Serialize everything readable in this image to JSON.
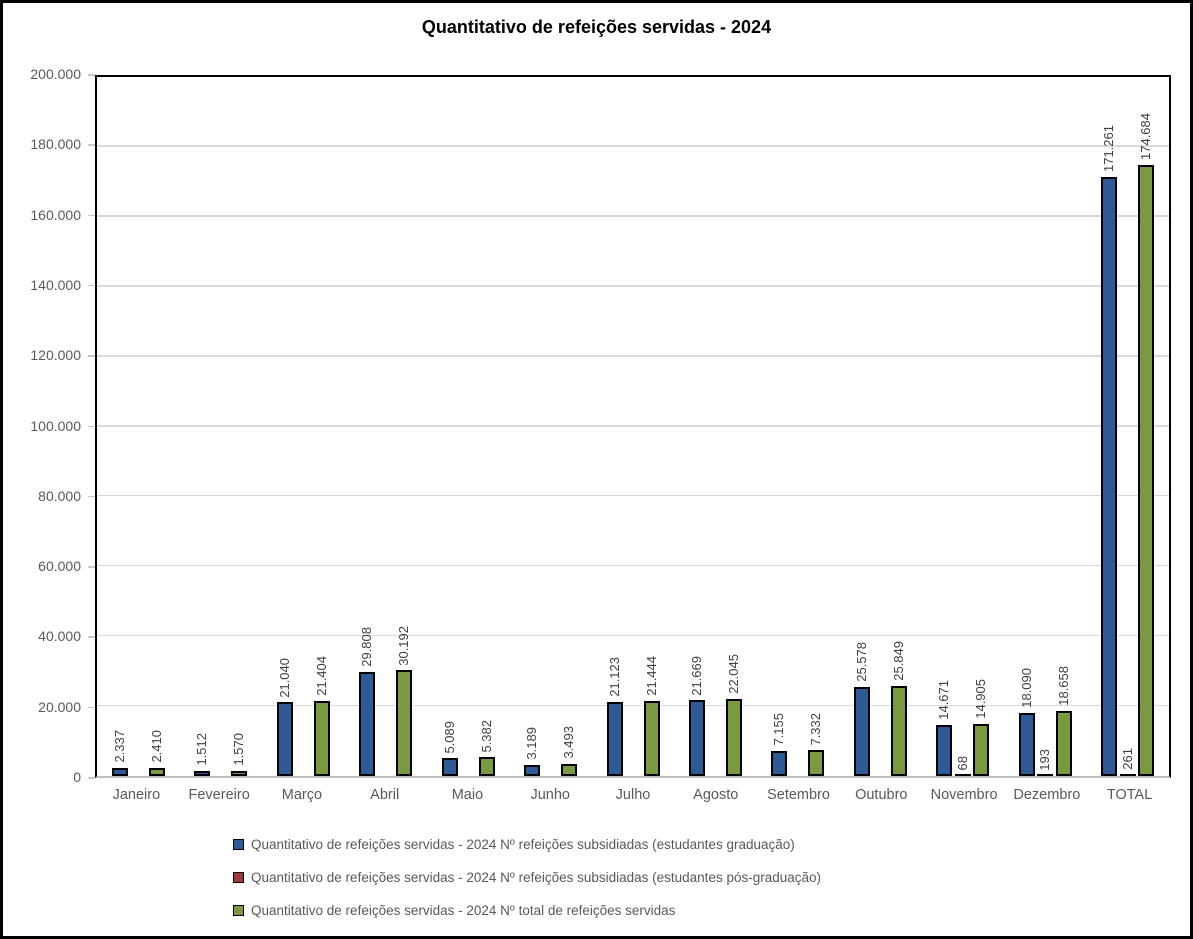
{
  "palette": {
    "figure_border": "#000000",
    "plot_border": "#000000",
    "baseline": "#BFBFBF",
    "grid": "#D9D9D9",
    "tick": "#C9C9C9",
    "axis_text": "#595959",
    "bar_label_text": "#3F3F3F",
    "bar_border": "#000000",
    "title_text": "#000000",
    "background": "#FFFFFF"
  },
  "chart_data": {
    "type": "bar",
    "title": "Quantitativo de refeições servidas - 2024",
    "categories": [
      "Janeiro",
      "Fevereiro",
      "Março",
      "Abril",
      "Maio",
      "Junho",
      "Julho",
      "Agosto",
      "Setembro",
      "Outubro",
      "Novembro",
      "Dezembro",
      "TOTAL"
    ],
    "series": [
      {
        "key": "graduacao",
        "name": "Quantitativo de refeições servidas - 2024 Nº refeições subsidiadas (estudantes graduação)",
        "color": "#2E5B97",
        "values": [
          2337,
          1512,
          21040,
          29808,
          5089,
          3189,
          21123,
          21669,
          7155,
          25578,
          14671,
          18090,
          171261
        ],
        "labels": [
          "2.337",
          "1.512",
          "21.040",
          "29.808",
          "5.089",
          "3.189",
          "21.123",
          "21.669",
          "7.155",
          "25.578",
          "14.671",
          "18.090",
          "171.261"
        ]
      },
      {
        "key": "pos-graduacao",
        "name": "Quantitativo de refeições servidas - 2024 Nº refeições subsidiadas (estudantes pós-graduação)",
        "color": "#9E3B39",
        "values": [
          null,
          null,
          null,
          null,
          null,
          null,
          null,
          null,
          null,
          null,
          68,
          193,
          261
        ],
        "labels": [
          "",
          "",
          "",
          "",
          "",
          "",
          "",
          "",
          "",
          "",
          "68",
          "193",
          "261"
        ]
      },
      {
        "key": "total",
        "name": "Quantitativo de refeições servidas - 2024 Nº total de refeições servidas",
        "color": "#7A9A40",
        "values": [
          2410,
          1570,
          21404,
          30192,
          5382,
          3493,
          21444,
          22045,
          7332,
          25849,
          14905,
          18658,
          174684
        ],
        "labels": [
          "2.410",
          "1.570",
          "21.404",
          "30.192",
          "5.382",
          "3.493",
          "21.444",
          "22.045",
          "7.332",
          "25.849",
          "14.905",
          "18.658",
          "174.684"
        ]
      }
    ],
    "ylim": [
      0,
      200000
    ],
    "ytick_step": 20000,
    "ytick_labels": [
      "0",
      "20.000",
      "40.000",
      "60.000",
      "80.000",
      "100.000",
      "120.000",
      "140.000",
      "160.000",
      "180.000",
      "200.000"
    ],
    "grid": true,
    "bar_label_rotation": 90,
    "legend_position": "bottom-left"
  }
}
